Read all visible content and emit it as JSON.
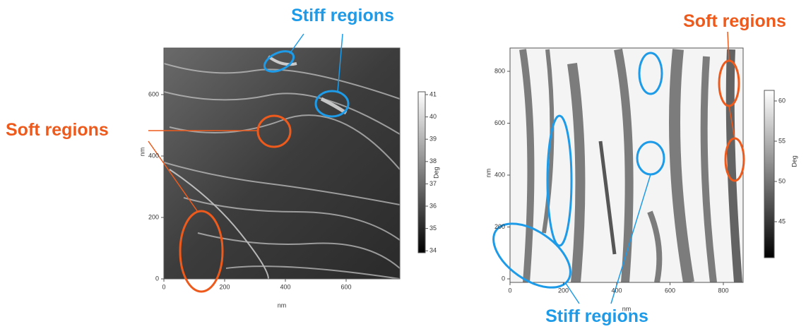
{
  "annotations": {
    "stiff_top": "Stiff regions",
    "soft_left": "Soft regions",
    "soft_right": "Soft regions",
    "stiff_bottom": "Stiff regions"
  },
  "panels": [
    {
      "x_ticks": [
        "0",
        "200",
        "400",
        "600"
      ],
      "y_ticks": [
        "0",
        "200",
        "400",
        "600"
      ],
      "x_label": "nm",
      "y_label": "nm",
      "colorbar_ticks": [
        "41",
        "40",
        "39",
        "38",
        "37",
        "36",
        "35",
        "34"
      ],
      "colorbar_label": "Deg"
    },
    {
      "x_ticks": [
        "0",
        "200",
        "400",
        "600",
        "800"
      ],
      "y_ticks": [
        "0",
        "200",
        "400",
        "600",
        "800"
      ],
      "x_label": "nm",
      "y_label": "nm",
      "colorbar_ticks": [
        "60",
        "55",
        "50",
        "45"
      ],
      "colorbar_label": "Deg"
    }
  ]
}
